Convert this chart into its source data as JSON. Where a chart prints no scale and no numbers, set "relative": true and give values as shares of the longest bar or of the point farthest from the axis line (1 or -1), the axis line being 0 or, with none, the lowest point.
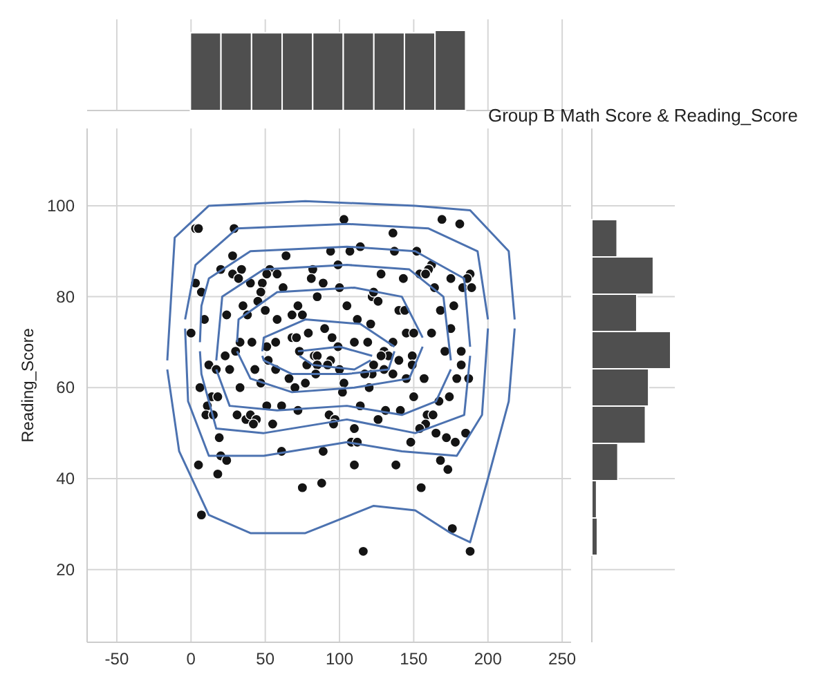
{
  "chart_data": [
    {
      "type": "bar",
      "relative": true,
      "color": "#4f4f4f",
      "categories": [
        null,
        null,
        null,
        null,
        null,
        null,
        null,
        null,
        null
      ],
      "values": [
        0.97,
        0.97,
        0.97,
        0.97,
        0.97,
        0.97,
        0.97,
        0.97,
        1
      ],
      "grid": "x"
    },
    {
      "type": "scatter",
      "title": "Group B Math Score & Reading_Score",
      "ylabel": "Reading_Score",
      "xlim": [
        -70,
        256
      ],
      "ylim": [
        4,
        117
      ],
      "xticks": [
        -50,
        0,
        50,
        100,
        150,
        200,
        250
      ],
      "yticks": [
        20,
        40,
        60,
        80,
        100
      ],
      "grid": true,
      "series": [
        {
          "type": "scatter",
          "color": "#141414",
          "marker": "circle",
          "x": [
            3,
            5,
            29,
            103,
            28,
            64,
            94,
            107,
            114,
            99,
            20,
            34,
            53,
            82,
            28,
            32,
            51,
            58,
            81,
            3,
            40,
            48,
            89,
            7,
            47,
            62,
            100,
            85,
            122,
            45,
            35,
            72,
            105,
            38,
            50,
            24,
            9,
            58,
            68,
            75,
            112,
            121,
            0,
            79,
            90,
            95,
            68,
            71,
            33,
            41,
            57,
            51,
            99,
            110,
            119,
            73,
            30,
            23,
            83,
            85,
            52,
            94,
            12,
            17,
            26,
            43,
            57,
            78,
            85,
            92,
            100,
            122,
            66,
            77,
            103,
            169,
            181,
            136,
            137,
            152,
            162,
            160,
            154,
            158,
            128,
            143,
            175,
            188,
            186,
            164,
            183,
            189,
            123,
            126,
            177,
            140,
            144,
            168,
            175,
            145,
            150,
            162,
            136,
            171,
            182,
            130,
            133,
            128,
            149,
            140,
            123,
            130,
            149,
            182,
            117,
            136,
            145,
            157,
            179,
            187,
            6,
            14,
            18,
            33,
            47,
            70,
            84,
            102,
            120,
            11,
            10,
            15,
            31,
            37,
            40,
            44,
            42,
            51,
            61,
            72,
            55,
            93,
            97,
            96,
            114,
            110,
            19,
            108,
            112,
            20,
            24,
            61,
            89,
            5,
            18,
            110,
            75,
            88,
            7,
            116,
            150,
            174,
            167,
            131,
            141,
            126,
            159,
            163,
            158,
            154,
            165,
            185,
            172,
            178,
            148,
            168,
            173,
            138,
            155,
            176,
            188
          ],
          "values": [
            95,
            95,
            95,
            97,
            89,
            89,
            90,
            90,
            91,
            87,
            86,
            86,
            86,
            86,
            85,
            84,
            85,
            85,
            84,
            83,
            83,
            83,
            83,
            81,
            81,
            82,
            82,
            80,
            80,
            79,
            78,
            78,
            78,
            76,
            77,
            76,
            75,
            75,
            76,
            76,
            75,
            74,
            72,
            72,
            73,
            71,
            71,
            71,
            70,
            70,
            70,
            69,
            69,
            70,
            70,
            68,
            68,
            67,
            67,
            67,
            66,
            66,
            65,
            64,
            64,
            64,
            64,
            65,
            65,
            65,
            64,
            63,
            62,
            61,
            61,
            97,
            96,
            94,
            90,
            90,
            87,
            86,
            85,
            85,
            85,
            84,
            84,
            85,
            84,
            82,
            82,
            82,
            81,
            79,
            78,
            77,
            77,
            77,
            73,
            72,
            72,
            72,
            70,
            68,
            68,
            68,
            67,
            67,
            67,
            66,
            65,
            64,
            65,
            65,
            63,
            63,
            62,
            62,
            62,
            62,
            60,
            58,
            58,
            60,
            61,
            60,
            63,
            59,
            60,
            56,
            54,
            54,
            54,
            53,
            54,
            53,
            52,
            56,
            56,
            55,
            52,
            54,
            53,
            52,
            56,
            51,
            49,
            48,
            48,
            45,
            44,
            46,
            46,
            43,
            41,
            43,
            38,
            39,
            32,
            24,
            58,
            58,
            57,
            55,
            55,
            53,
            54,
            54,
            52,
            51,
            50,
            50,
            49,
            48,
            48,
            44,
            42,
            43,
            38,
            29,
            24
          ]
        },
        {
          "type": "line",
          "color": "#4c72b0",
          "x": [
            -16,
            -11,
            12,
            77,
            151,
            188,
            214,
            218
          ],
          "values": [
            66,
            93,
            100,
            101,
            100,
            99,
            90,
            75
          ]
        },
        {
          "type": "line",
          "color": "#4c72b0",
          "x": [
            -16,
            -8,
            12,
            40,
            77,
            123,
            151,
            175,
            188,
            200,
            214,
            218
          ],
          "values": [
            64,
            46,
            32,
            28,
            28,
            34,
            33,
            28,
            26,
            40,
            57,
            73
          ]
        },
        {
          "type": "line",
          "color": "#4c72b0",
          "x": [
            -4,
            3,
            31,
            105,
            160,
            193,
            200
          ],
          "values": [
            75,
            87,
            95,
            96,
            95,
            90,
            75
          ]
        },
        {
          "type": "line",
          "color": "#4c72b0",
          "x": [
            -4,
            -2,
            12,
            49,
            105,
            142,
            179,
            196,
            200
          ],
          "values": [
            73,
            57,
            45,
            45,
            48,
            46,
            45,
            54,
            73
          ]
        },
        {
          "type": "line",
          "color": "#4c72b0",
          "x": [
            6,
            7,
            12,
            40,
            105,
            151,
            184,
            188
          ],
          "values": [
            70,
            78,
            84,
            90,
            91,
            90,
            84,
            69
          ]
        },
        {
          "type": "line",
          "color": "#4c72b0",
          "x": [
            6,
            7,
            17,
            49,
            105,
            151,
            184,
            188
          ],
          "values": [
            68,
            63,
            51,
            50,
            53,
            50,
            54,
            67
          ]
        },
        {
          "type": "line",
          "color": "#4c72b0",
          "x": [
            17,
            21,
            49,
            105,
            147,
            170,
            175
          ],
          "values": [
            66,
            80,
            86,
            87,
            86,
            80,
            66
          ]
        },
        {
          "type": "line",
          "color": "#4c72b0",
          "x": [
            17,
            26,
            58,
            105,
            142,
            165,
            175
          ],
          "values": [
            64,
            56,
            55,
            56,
            54,
            57,
            64
          ]
        },
        {
          "type": "line",
          "color": "#4c72b0",
          "x": [
            31,
            32,
            58,
            110,
            142,
            156
          ],
          "values": [
            70,
            75,
            81,
            82,
            80,
            71
          ]
        },
        {
          "type": "line",
          "color": "#4c72b0",
          "x": [
            31,
            40,
            68,
            110,
            147,
            156
          ],
          "values": [
            68,
            62,
            59,
            60,
            62,
            69
          ]
        },
        {
          "type": "line",
          "color": "#4c72b0",
          "x": [
            48,
            49,
            77,
            114,
            137
          ],
          "values": [
            68,
            71,
            75,
            74,
            69
          ]
        },
        {
          "type": "line",
          "color": "#4c72b0",
          "x": [
            48,
            49,
            68,
            105,
            133,
            137
          ],
          "values": [
            67,
            66,
            63,
            63,
            64,
            68
          ]
        },
        {
          "type": "line",
          "color": "#4c72b0",
          "x": [
            72,
            100,
            122
          ],
          "values": [
            68,
            69,
            67
          ]
        },
        {
          "type": "line",
          "color": "#4c72b0",
          "x": [
            73,
            82,
            110,
            121
          ],
          "values": [
            67,
            65,
            64,
            66
          ]
        }
      ]
    },
    {
      "type": "bar",
      "orientation": "horizontal",
      "relative": true,
      "color": "#4f4f4f",
      "categories": [
        null,
        null,
        null,
        null,
        null,
        null,
        null,
        null,
        null
      ],
      "values": [
        0.32,
        0.78,
        0.57,
        1,
        0.72,
        0.68,
        0.33,
        0.06,
        0.07
      ],
      "grid": "y"
    }
  ]
}
